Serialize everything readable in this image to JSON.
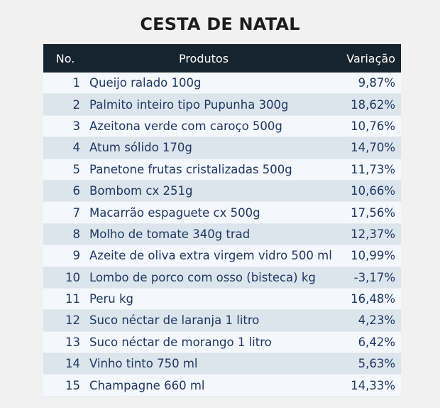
{
  "title": "CESTA DE NATAL",
  "headers": {
    "no": "No.",
    "product": "Produtos",
    "variation": "Variação"
  },
  "rows": [
    {
      "no": "1",
      "product": "Queijo ralado 100g",
      "variation": "9,87%"
    },
    {
      "no": "2",
      "product": "Palmito inteiro tipo Pupunha 300g",
      "variation": "18,62%"
    },
    {
      "no": "3",
      "product": "Azeitona verde com caroço 500g",
      "variation": "10,76%"
    },
    {
      "no": "4",
      "product": "Atum sólido 170g",
      "variation": "14,70%"
    },
    {
      "no": "5",
      "product": "Panetone frutas cristalizadas 500g",
      "variation": "11,73%"
    },
    {
      "no": "6",
      "product": "Bombom cx 251g",
      "variation": "10,66%"
    },
    {
      "no": "7",
      "product": "Macarrão espaguete cx 500g",
      "variation": "17,56%"
    },
    {
      "no": "8",
      "product": "Molho de tomate 340g trad",
      "variation": "12,37%"
    },
    {
      "no": "9",
      "product": "Azeite de oliva extra virgem vidro 500 ml",
      "variation": "10,99%"
    },
    {
      "no": "10",
      "product": "Lombo de porco com osso (bisteca) kg",
      "variation": "-3,17%"
    },
    {
      "no": "11",
      "product": "Peru kg",
      "variation": "16,48%"
    },
    {
      "no": "12",
      "product": "Suco néctar de laranja 1 litro",
      "variation": "4,23%"
    },
    {
      "no": "13",
      "product": "Suco néctar de morango 1 litro",
      "variation": "6,42%"
    },
    {
      "no": "14",
      "product": "Vinho tinto 750 ml",
      "variation": "5,63%"
    },
    {
      "no": "15",
      "product": "Champagne 660 ml",
      "variation": "14,33%"
    }
  ]
}
